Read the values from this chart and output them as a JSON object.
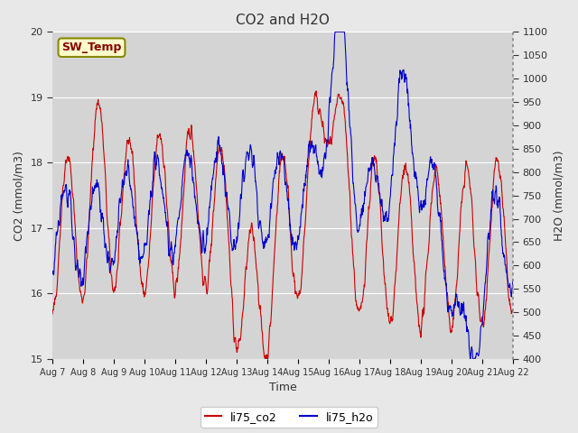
{
  "title": "CO2 and H2O",
  "xlabel": "Time",
  "ylabel_left": "CO2 (mmol/m3)",
  "ylabel_right": "H2O (mmol/m3)",
  "ylim_left": [
    15.0,
    20.0
  ],
  "ylim_right": [
    400,
    1100
  ],
  "x_tick_labels": [
    "Aug 7",
    "Aug 8",
    "Aug 9",
    "Aug 10",
    "Aug 11",
    "Aug 12",
    "Aug 13",
    "Aug 14",
    "Aug 15",
    "Aug 16",
    "Aug 17",
    "Aug 18",
    "Aug 19",
    "Aug 20",
    "Aug 21",
    "Aug 22"
  ],
  "legend_labels": [
    "li75_co2",
    "li75_h2o"
  ],
  "co2_color": "#cc0000",
  "h2o_color": "#0000cc",
  "bg_color": "#e8e8e8",
  "plot_bg_color": "#d4d4d4",
  "annotation_text": "SW_Temp",
  "annotation_bg": "#ffffcc",
  "annotation_border": "#888800",
  "annotation_text_color": "#880000",
  "grid_color": "#ffffff"
}
